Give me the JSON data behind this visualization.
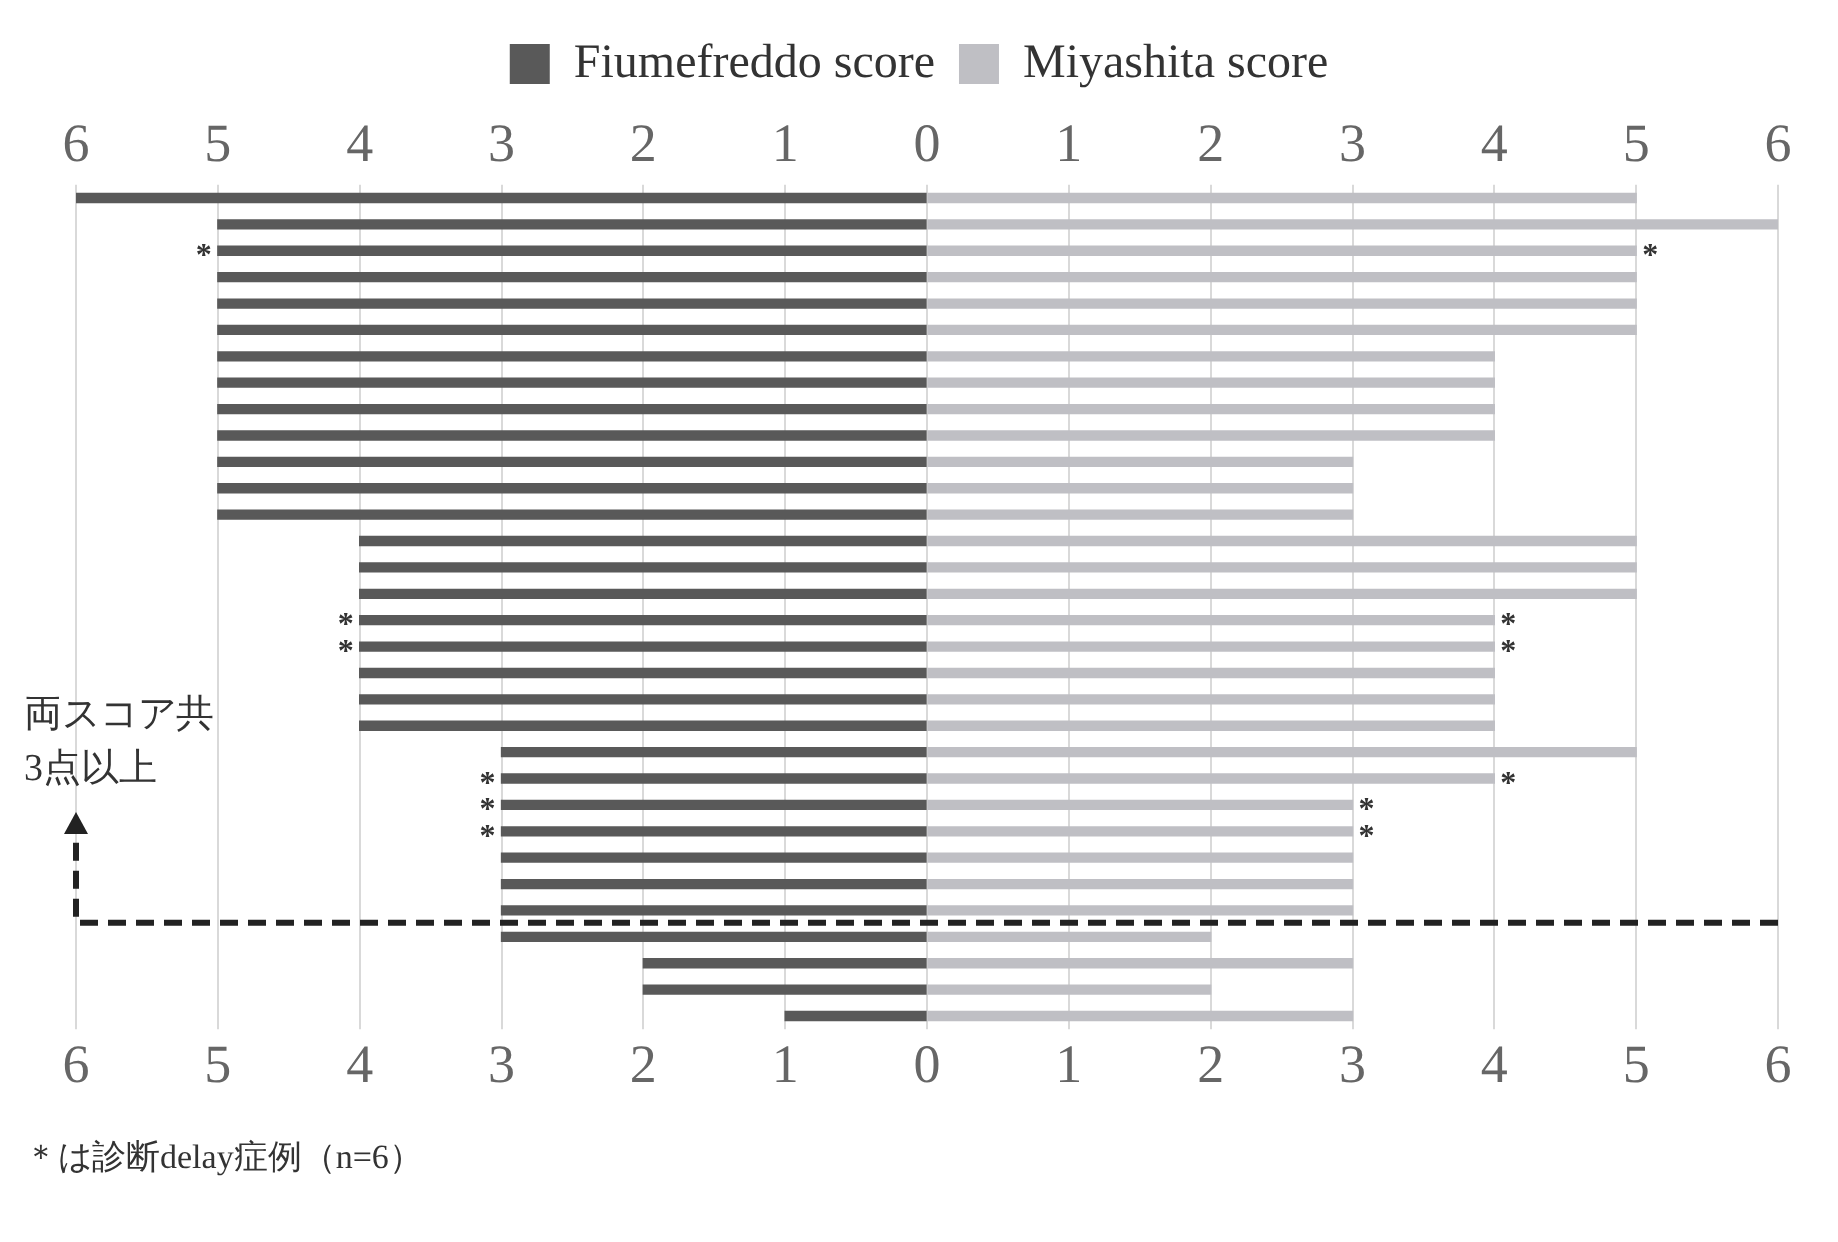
{
  "chart_data": {
    "type": "bar",
    "orientation": "horizontal",
    "stacked": true,
    "categories": [
      null,
      null,
      null,
      null,
      null,
      null,
      null,
      null,
      null,
      null,
      null,
      null,
      null,
      null,
      null,
      null,
      null,
      null,
      null,
      null,
      null,
      null,
      null,
      null,
      null,
      null,
      null,
      null,
      null,
      null,
      null,
      null
    ],
    "series": [
      {
        "name": "Fiumefreddo score",
        "color": "#595959",
        "values": [
          -6,
          -5,
          -5,
          -5,
          -5,
          -5,
          -5,
          -5,
          -5,
          -5,
          -5,
          -5,
          -5,
          -4,
          -4,
          -4,
          -4,
          -4,
          -4,
          -4,
          -4,
          -3,
          -3,
          -3,
          -3,
          -3,
          -3,
          -3,
          -3,
          -2,
          -2,
          -1
        ],
        "value_labels": [
          null,
          null,
          "*",
          null,
          null,
          null,
          null,
          null,
          null,
          null,
          null,
          null,
          null,
          null,
          null,
          null,
          "*",
          "*",
          null,
          null,
          null,
          null,
          "*",
          "*",
          "*",
          null,
          null,
          null,
          null,
          null,
          null,
          null
        ]
      },
      {
        "name": "Miyashita score",
        "color": "#bfbfc4",
        "values": [
          5,
          6,
          5,
          5,
          5,
          5,
          4,
          4,
          4,
          4,
          3,
          3,
          3,
          5,
          5,
          5,
          4,
          4,
          4,
          4,
          4,
          5,
          4,
          3,
          3,
          3,
          3,
          3,
          2,
          3,
          2,
          3
        ],
        "value_labels": [
          null,
          null,
          "*",
          null,
          null,
          null,
          null,
          null,
          null,
          null,
          null,
          null,
          null,
          null,
          null,
          null,
          "*",
          "*",
          null,
          null,
          null,
          null,
          "*",
          "*",
          "*",
          null,
          null,
          null,
          null,
          null,
          null,
          null
        ]
      }
    ],
    "xlim": [
      -6,
      6
    ],
    "xticks": [
      {
        "value": -6,
        "label": "6"
      },
      {
        "value": -5,
        "label": "5"
      },
      {
        "value": -4,
        "label": "4"
      },
      {
        "value": -3,
        "label": "3"
      },
      {
        "value": -2,
        "label": "2"
      },
      {
        "value": -1,
        "label": "1"
      },
      0,
      1,
      2,
      3,
      4,
      5,
      6
    ],
    "x2lim": [
      -6,
      6
    ],
    "x2ticks": [
      {
        "value": -6,
        "label": "6"
      },
      {
        "value": -5,
        "label": "5"
      },
      {
        "value": -4,
        "label": "4"
      },
      {
        "value": -3,
        "label": "3"
      },
      {
        "value": -2,
        "label": "2"
      },
      {
        "value": -1,
        "label": "1"
      },
      0,
      1,
      2,
      3,
      4,
      5,
      6
    ],
    "tick_labels": "x",
    "grid": "x",
    "legend": "top",
    "annotations": [
      "両スコア共\n3点以上",
      "＊は診断delay症例（n=6）"
    ]
  }
}
